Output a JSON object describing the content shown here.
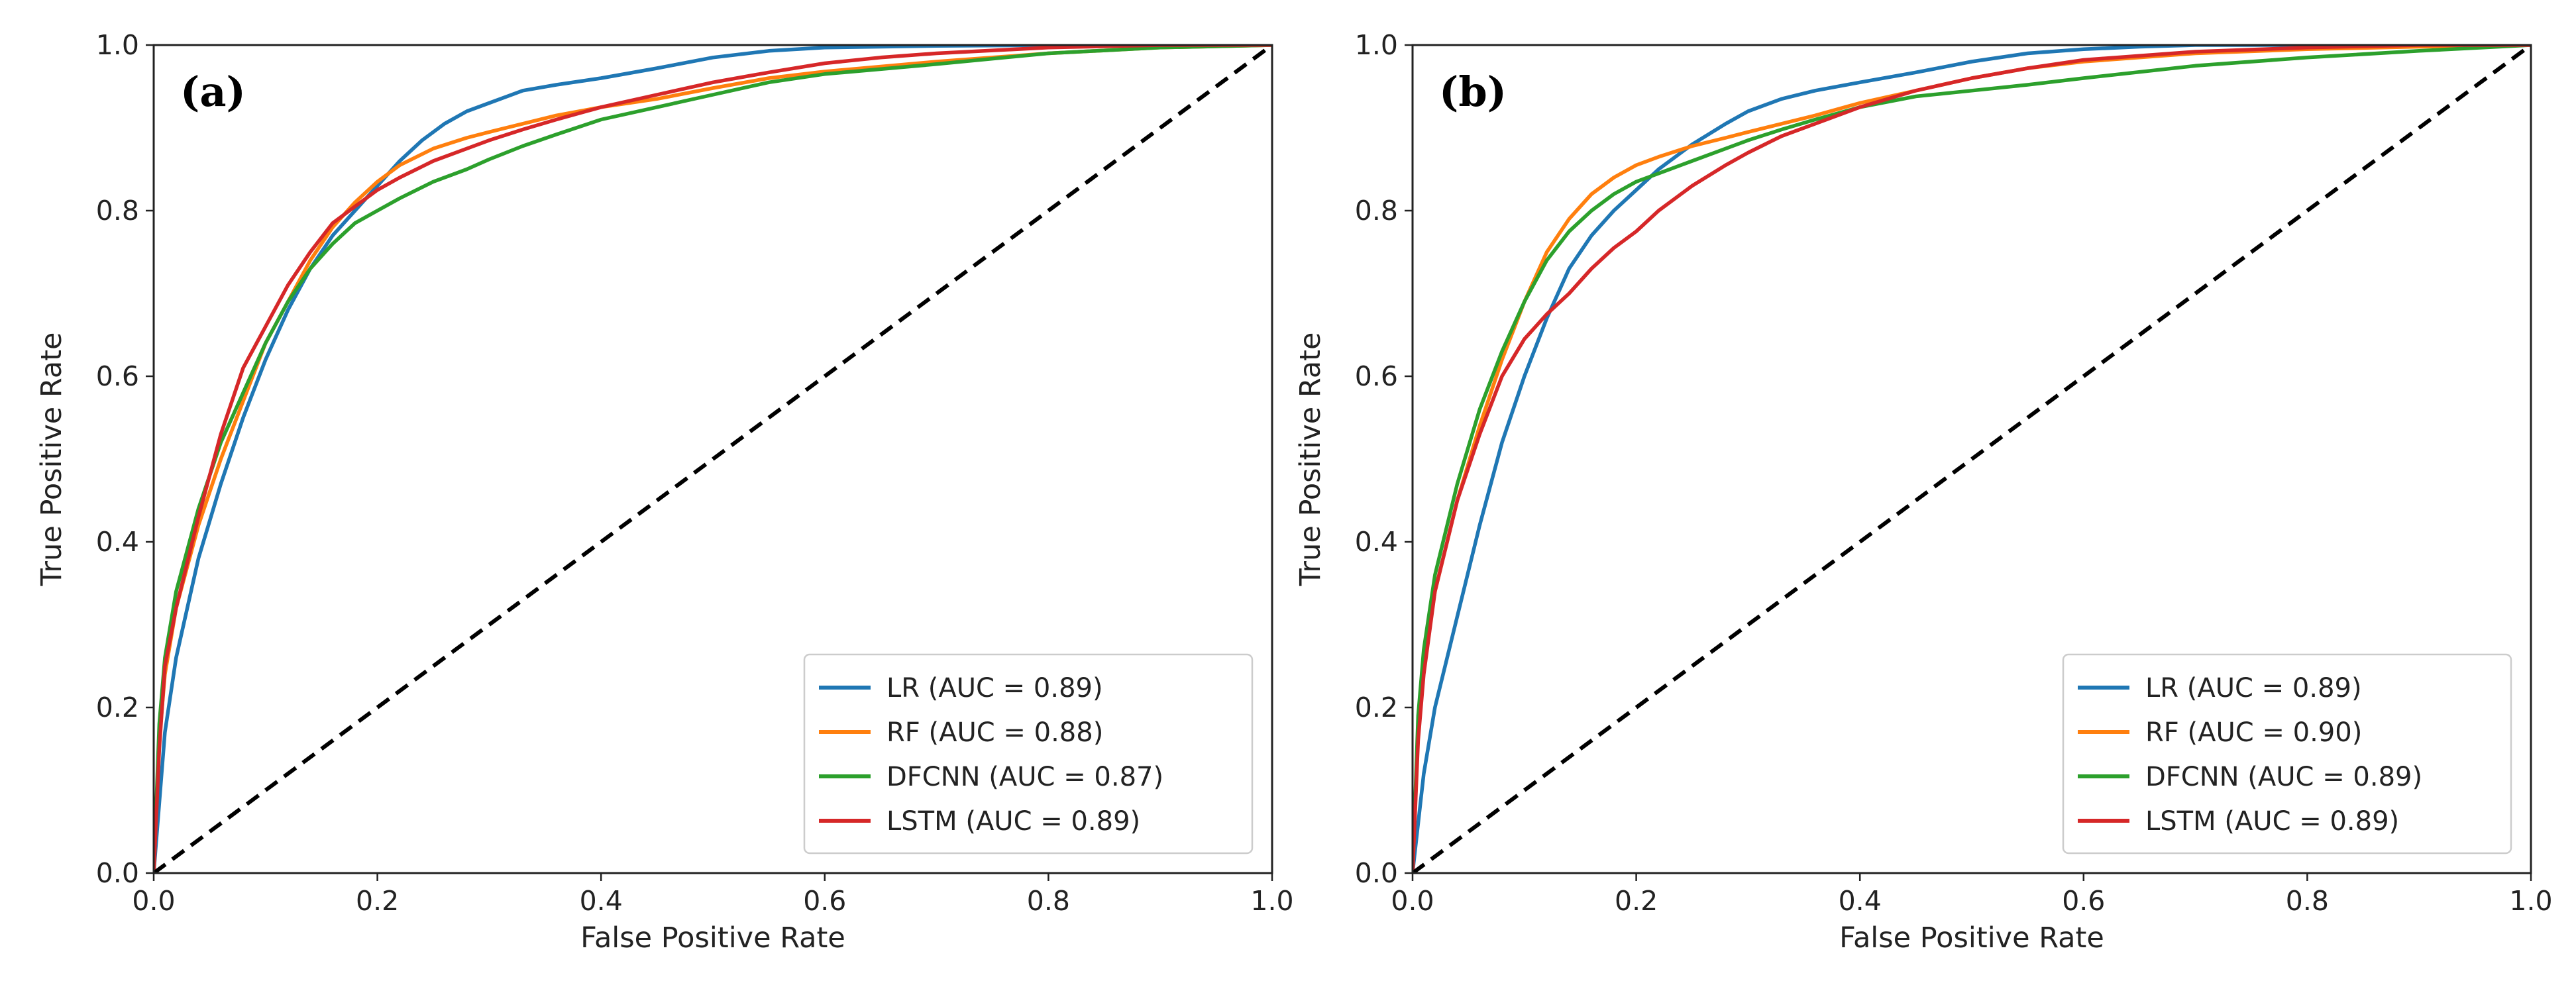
{
  "chart_data": [
    {
      "type": "line",
      "panel_label": "(a)",
      "xlabel": "False Positive Rate",
      "ylabel": "True Positive Rate",
      "xlim": [
        0,
        1
      ],
      "ylim": [
        0,
        1
      ],
      "xticks": [
        "0.0",
        "0.2",
        "0.4",
        "0.6",
        "0.8",
        "1.0"
      ],
      "yticks": [
        "0.0",
        "0.2",
        "0.4",
        "0.6",
        "0.8",
        "1.0"
      ],
      "legend_position": "lower-right",
      "reference_line": {
        "name": "chance",
        "style": "dashed",
        "color": "#000000",
        "x": [
          0,
          1
        ],
        "y": [
          0,
          1
        ]
      },
      "series": [
        {
          "name": "LR",
          "label": "LR (AUC = 0.89)",
          "color": "#1f77b4",
          "x": [
            0,
            0.01,
            0.02,
            0.04,
            0.06,
            0.08,
            0.1,
            0.12,
            0.14,
            0.16,
            0.18,
            0.2,
            0.22,
            0.24,
            0.26,
            0.28,
            0.3,
            0.33,
            0.36,
            0.4,
            0.45,
            0.5,
            0.55,
            0.6,
            0.7,
            0.8,
            0.9,
            1.0
          ],
          "y": [
            0,
            0.17,
            0.26,
            0.38,
            0.47,
            0.55,
            0.62,
            0.68,
            0.73,
            0.77,
            0.8,
            0.83,
            0.86,
            0.885,
            0.905,
            0.92,
            0.93,
            0.945,
            0.952,
            0.96,
            0.972,
            0.985,
            0.993,
            0.997,
            0.999,
            1.0,
            1.0,
            1.0
          ]
        },
        {
          "name": "RF",
          "label": "RF (AUC = 0.88)",
          "color": "#ff7f0e",
          "x": [
            0,
            0.005,
            0.01,
            0.02,
            0.04,
            0.06,
            0.08,
            0.1,
            0.12,
            0.14,
            0.16,
            0.18,
            0.2,
            0.22,
            0.25,
            0.28,
            0.3,
            0.33,
            0.36,
            0.4,
            0.45,
            0.5,
            0.55,
            0.6,
            0.7,
            0.8,
            0.9,
            1.0
          ],
          "y": [
            0,
            0.16,
            0.24,
            0.32,
            0.42,
            0.5,
            0.57,
            0.64,
            0.69,
            0.74,
            0.78,
            0.81,
            0.835,
            0.855,
            0.875,
            0.888,
            0.895,
            0.905,
            0.915,
            0.925,
            0.935,
            0.948,
            0.96,
            0.968,
            0.98,
            0.99,
            0.997,
            1.0
          ]
        },
        {
          "name": "DFCNN",
          "label": "DFCNN (AUC = 0.87)",
          "color": "#2ca02c",
          "x": [
            0,
            0.005,
            0.01,
            0.02,
            0.04,
            0.06,
            0.08,
            0.1,
            0.12,
            0.14,
            0.16,
            0.18,
            0.2,
            0.22,
            0.25,
            0.28,
            0.3,
            0.33,
            0.36,
            0.4,
            0.45,
            0.5,
            0.55,
            0.6,
            0.7,
            0.8,
            0.9,
            1.0
          ],
          "y": [
            0,
            0.18,
            0.26,
            0.34,
            0.44,
            0.52,
            0.58,
            0.64,
            0.69,
            0.73,
            0.76,
            0.785,
            0.8,
            0.815,
            0.835,
            0.85,
            0.862,
            0.878,
            0.892,
            0.91,
            0.925,
            0.94,
            0.955,
            0.965,
            0.977,
            0.99,
            0.997,
            1.0
          ]
        },
        {
          "name": "LSTM",
          "label": "LSTM (AUC = 0.89)",
          "color": "#d62728",
          "x": [
            0,
            0.005,
            0.01,
            0.02,
            0.04,
            0.06,
            0.08,
            0.1,
            0.12,
            0.14,
            0.16,
            0.18,
            0.2,
            0.22,
            0.25,
            0.28,
            0.3,
            0.33,
            0.36,
            0.4,
            0.45,
            0.5,
            0.55,
            0.6,
            0.65,
            0.7,
            0.8,
            0.9,
            1.0
          ],
          "y": [
            0,
            0.15,
            0.25,
            0.32,
            0.43,
            0.53,
            0.61,
            0.66,
            0.71,
            0.75,
            0.785,
            0.805,
            0.825,
            0.84,
            0.86,
            0.875,
            0.885,
            0.898,
            0.91,
            0.925,
            0.94,
            0.955,
            0.967,
            0.978,
            0.985,
            0.99,
            0.997,
            1.0,
            1.0
          ]
        }
      ]
    },
    {
      "type": "line",
      "panel_label": "(b)",
      "xlabel": "False Positive Rate",
      "ylabel": "True Positive Rate",
      "xlim": [
        0,
        1
      ],
      "ylim": [
        0,
        1
      ],
      "xticks": [
        "0.0",
        "0.2",
        "0.4",
        "0.6",
        "0.8",
        "1.0"
      ],
      "yticks": [
        "0.0",
        "0.2",
        "0.4",
        "0.6",
        "0.8",
        "1.0"
      ],
      "legend_position": "lower-right",
      "reference_line": {
        "name": "chance",
        "style": "dashed",
        "color": "#000000",
        "x": [
          0,
          1
        ],
        "y": [
          0,
          1
        ]
      },
      "series": [
        {
          "name": "LR",
          "label": "LR (AUC = 0.89)",
          "color": "#1f77b4",
          "x": [
            0,
            0.01,
            0.02,
            0.04,
            0.06,
            0.08,
            0.1,
            0.12,
            0.14,
            0.16,
            0.18,
            0.2,
            0.22,
            0.25,
            0.28,
            0.3,
            0.33,
            0.36,
            0.4,
            0.45,
            0.5,
            0.55,
            0.6,
            0.65,
            0.7,
            0.8,
            0.9,
            1.0
          ],
          "y": [
            0,
            0.12,
            0.2,
            0.31,
            0.42,
            0.52,
            0.6,
            0.67,
            0.73,
            0.77,
            0.8,
            0.825,
            0.85,
            0.88,
            0.905,
            0.92,
            0.935,
            0.945,
            0.955,
            0.967,
            0.98,
            0.99,
            0.995,
            0.998,
            1.0,
            1.0,
            1.0,
            1.0
          ]
        },
        {
          "name": "RF",
          "label": "RF (AUC = 0.90)",
          "color": "#ff7f0e",
          "x": [
            0,
            0.005,
            0.01,
            0.02,
            0.04,
            0.06,
            0.08,
            0.1,
            0.12,
            0.14,
            0.16,
            0.18,
            0.2,
            0.22,
            0.25,
            0.28,
            0.3,
            0.33,
            0.36,
            0.4,
            0.45,
            0.5,
            0.55,
            0.6,
            0.7,
            0.8,
            0.9,
            1.0
          ],
          "y": [
            0,
            0.17,
            0.25,
            0.34,
            0.45,
            0.54,
            0.62,
            0.69,
            0.75,
            0.79,
            0.82,
            0.84,
            0.855,
            0.865,
            0.878,
            0.888,
            0.895,
            0.905,
            0.915,
            0.93,
            0.945,
            0.96,
            0.972,
            0.98,
            0.99,
            0.995,
            0.998,
            1.0
          ]
        },
        {
          "name": "DFCNN",
          "label": "DFCNN (AUC = 0.89)",
          "color": "#2ca02c",
          "x": [
            0,
            0.005,
            0.01,
            0.02,
            0.04,
            0.06,
            0.08,
            0.1,
            0.12,
            0.14,
            0.16,
            0.18,
            0.2,
            0.22,
            0.25,
            0.28,
            0.3,
            0.33,
            0.36,
            0.4,
            0.45,
            0.5,
            0.55,
            0.6,
            0.7,
            0.8,
            0.9,
            1.0
          ],
          "y": [
            0,
            0.19,
            0.27,
            0.36,
            0.47,
            0.56,
            0.63,
            0.69,
            0.74,
            0.775,
            0.8,
            0.82,
            0.835,
            0.845,
            0.86,
            0.875,
            0.885,
            0.898,
            0.91,
            0.925,
            0.938,
            0.945,
            0.952,
            0.96,
            0.975,
            0.985,
            0.993,
            1.0
          ]
        },
        {
          "name": "LSTM",
          "label": "LSTM (AUC = 0.89)",
          "color": "#d62728",
          "x": [
            0,
            0.005,
            0.01,
            0.02,
            0.04,
            0.06,
            0.08,
            0.1,
            0.12,
            0.14,
            0.16,
            0.18,
            0.2,
            0.22,
            0.25,
            0.28,
            0.3,
            0.33,
            0.36,
            0.4,
            0.45,
            0.5,
            0.55,
            0.6,
            0.7,
            0.8,
            0.9,
            1.0
          ],
          "y": [
            0,
            0.16,
            0.24,
            0.34,
            0.45,
            0.53,
            0.6,
            0.645,
            0.675,
            0.7,
            0.73,
            0.755,
            0.775,
            0.8,
            0.83,
            0.855,
            0.87,
            0.89,
            0.905,
            0.925,
            0.945,
            0.96,
            0.972,
            0.982,
            0.992,
            0.997,
            1.0,
            1.0
          ]
        }
      ]
    }
  ]
}
